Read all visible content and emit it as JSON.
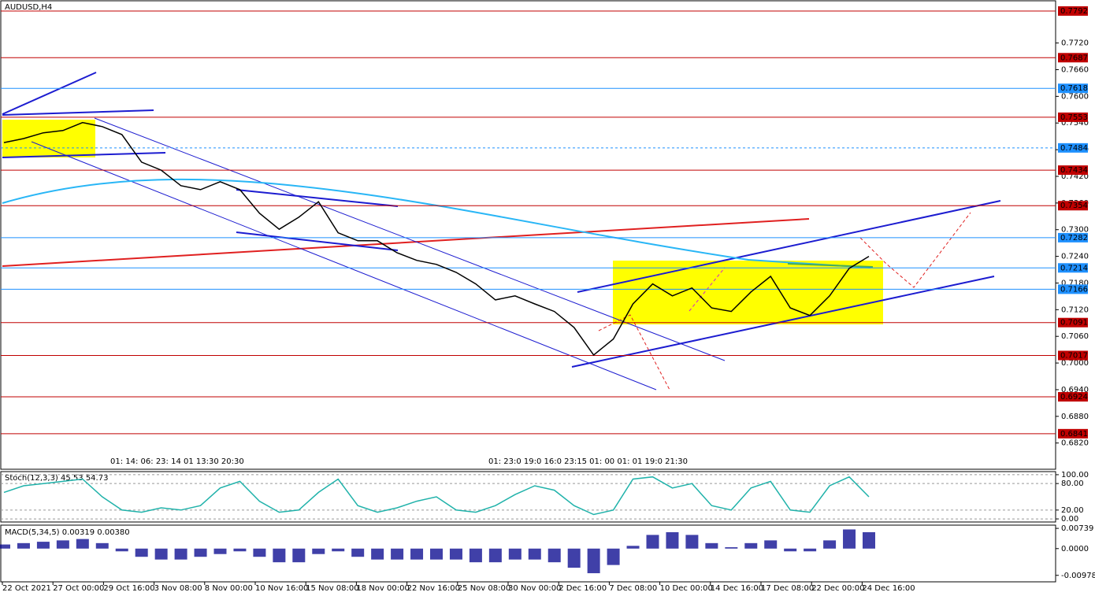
{
  "chart_data": [
    {
      "type": "line",
      "title": "AUDUSD,H4",
      "color": "#000000",
      "values": [
        0.7496,
        0.7505,
        0.7518,
        0.7523,
        0.7541,
        0.7532,
        0.7514,
        0.7452,
        0.7434,
        0.7399,
        0.739,
        0.7408,
        0.739,
        0.7337,
        0.7301,
        0.7328,
        0.7363,
        0.7293,
        0.7275,
        0.7275,
        0.7248,
        0.7231,
        0.7222,
        0.7204,
        0.7178,
        0.7142,
        0.7151,
        0.7133,
        0.7116,
        0.708,
        0.7018,
        0.7054,
        0.7133,
        0.7178,
        0.7151,
        0.7169,
        0.7124,
        0.7116,
        0.716,
        0.7195,
        0.7124,
        0.7107,
        0.7151,
        0.7213,
        0.724
      ],
      "ylim": [
        0.6761,
        0.7815
      ],
      "yticks": [
        {
          "value": 0.772,
          "label": "0.7720"
        },
        {
          "value": 0.766,
          "label": "0.7660"
        },
        {
          "value": 0.76,
          "label": "0.7600"
        },
        {
          "value": 0.754,
          "label": "0.7540"
        },
        {
          "value": 0.748,
          "label": "0.7480"
        },
        {
          "value": 0.742,
          "label": "0.7420"
        },
        {
          "value": 0.736,
          "label": "0.7360"
        },
        {
          "value": 0.73,
          "label": "0.7300"
        },
        {
          "value": 0.724,
          "label": "0.7240"
        },
        {
          "value": 0.718,
          "label": "0.7180"
        },
        {
          "value": 0.712,
          "label": "0.7120"
        },
        {
          "value": 0.706,
          "label": "0.7060"
        },
        {
          "value": 0.7,
          "label": "0.7000"
        },
        {
          "value": 0.694,
          "label": "0.6940"
        },
        {
          "value": 0.688,
          "label": "0.6880"
        },
        {
          "value": 0.682,
          "label": "0.6820"
        }
      ],
      "levels": [
        {
          "value": 0.7792,
          "color": "#c00000"
        },
        {
          "value": 0.7687,
          "color": "#c00000"
        },
        {
          "value": 0.7618,
          "color": "#1e90ff"
        },
        {
          "value": 0.7553,
          "color": "#c00000"
        },
        {
          "value": 0.7484,
          "color": "#1e90ff"
        },
        {
          "value": 0.7434,
          "color": "#c00000"
        },
        {
          "value": 0.7354,
          "color": "#c00000"
        },
        {
          "value": 0.7282,
          "color": "#1e90ff"
        },
        {
          "value": 0.7214,
          "color": "#1e90ff"
        },
        {
          "value": 0.7166,
          "color": "#1e90ff"
        },
        {
          "value": 0.7091,
          "color": "#c00000"
        },
        {
          "value": 0.7017,
          "color": "#c00000"
        },
        {
          "value": 0.6924,
          "color": "#c00000"
        },
        {
          "value": 0.6841,
          "color": "#c00000"
        }
      ],
      "x_labels": [
        "22 Oct 2021",
        "27 Oct 00:00",
        "29 Oct 16:00",
        "3 Nov 08:00",
        "8 Nov 00:00",
        "10 Nov 16:00",
        "15 Nov 08:00",
        "18 Nov 00:00",
        "22 Nov 16:00",
        "25 Nov 08:00",
        "30 Nov 00:00",
        "2 Dec 16:00",
        "7 Dec 08:00",
        "10 Dec 00:00",
        "14 Dec 16:00",
        "17 Dec 08:00",
        "22 Dec 00:00",
        "24 Dec 16:00"
      ],
      "time_marks": [
        "01: 14: 06: 23: 14 01 13:30 20:30",
        "01: 23:0 19:0 16:0 23:15 01: 00 01: 01 19:0 21:30"
      ]
    },
    {
      "type": "line",
      "title": "Stoch(12,3,3) 45.53 54.73",
      "color": "#20b2aa",
      "values": [
        60,
        75,
        80,
        85,
        90,
        50,
        20,
        15,
        25,
        20,
        30,
        70,
        85,
        40,
        15,
        20,
        60,
        90,
        30,
        15,
        25,
        40,
        50,
        20,
        15,
        30,
        55,
        75,
        65,
        30,
        10,
        20,
        90,
        95,
        70,
        80,
        30,
        20,
        70,
        85,
        20,
        15,
        75,
        95,
        50
      ],
      "ylim": [
        -7,
        107
      ],
      "yticks": [
        {
          "value": 100,
          "label": "100.00"
        },
        {
          "value": 80,
          "label": "80.00"
        },
        {
          "value": 20,
          "label": "20.00"
        },
        {
          "value": 0,
          "label": "0.00"
        }
      ]
    },
    {
      "type": "bar",
      "title": "MACD(5,34,5) 0.00319 0.00380",
      "color": "#00008b",
      "values": [
        0.0015,
        0.002,
        0.0025,
        0.003,
        0.0035,
        0.002,
        -0.001,
        -0.003,
        -0.004,
        -0.004,
        -0.003,
        -0.002,
        -0.001,
        -0.003,
        -0.005,
        -0.005,
        -0.002,
        -0.001,
        -0.003,
        -0.004,
        -0.004,
        -0.004,
        -0.004,
        -0.004,
        -0.005,
        -0.005,
        -0.004,
        -0.004,
        -0.005,
        -0.007,
        -0.009,
        -0.006,
        0.001,
        0.005,
        0.006,
        0.005,
        0.002,
        0.0005,
        0.002,
        0.003,
        -0.001,
        -0.001,
        0.003,
        0.007,
        0.006
      ],
      "ylim": [
        -0.01215,
        0.00857
      ],
      "yticks": [
        0.00739,
        {
          "value": 0,
          "label": "0.0000"
        },
        -0.00978
      ]
    }
  ]
}
